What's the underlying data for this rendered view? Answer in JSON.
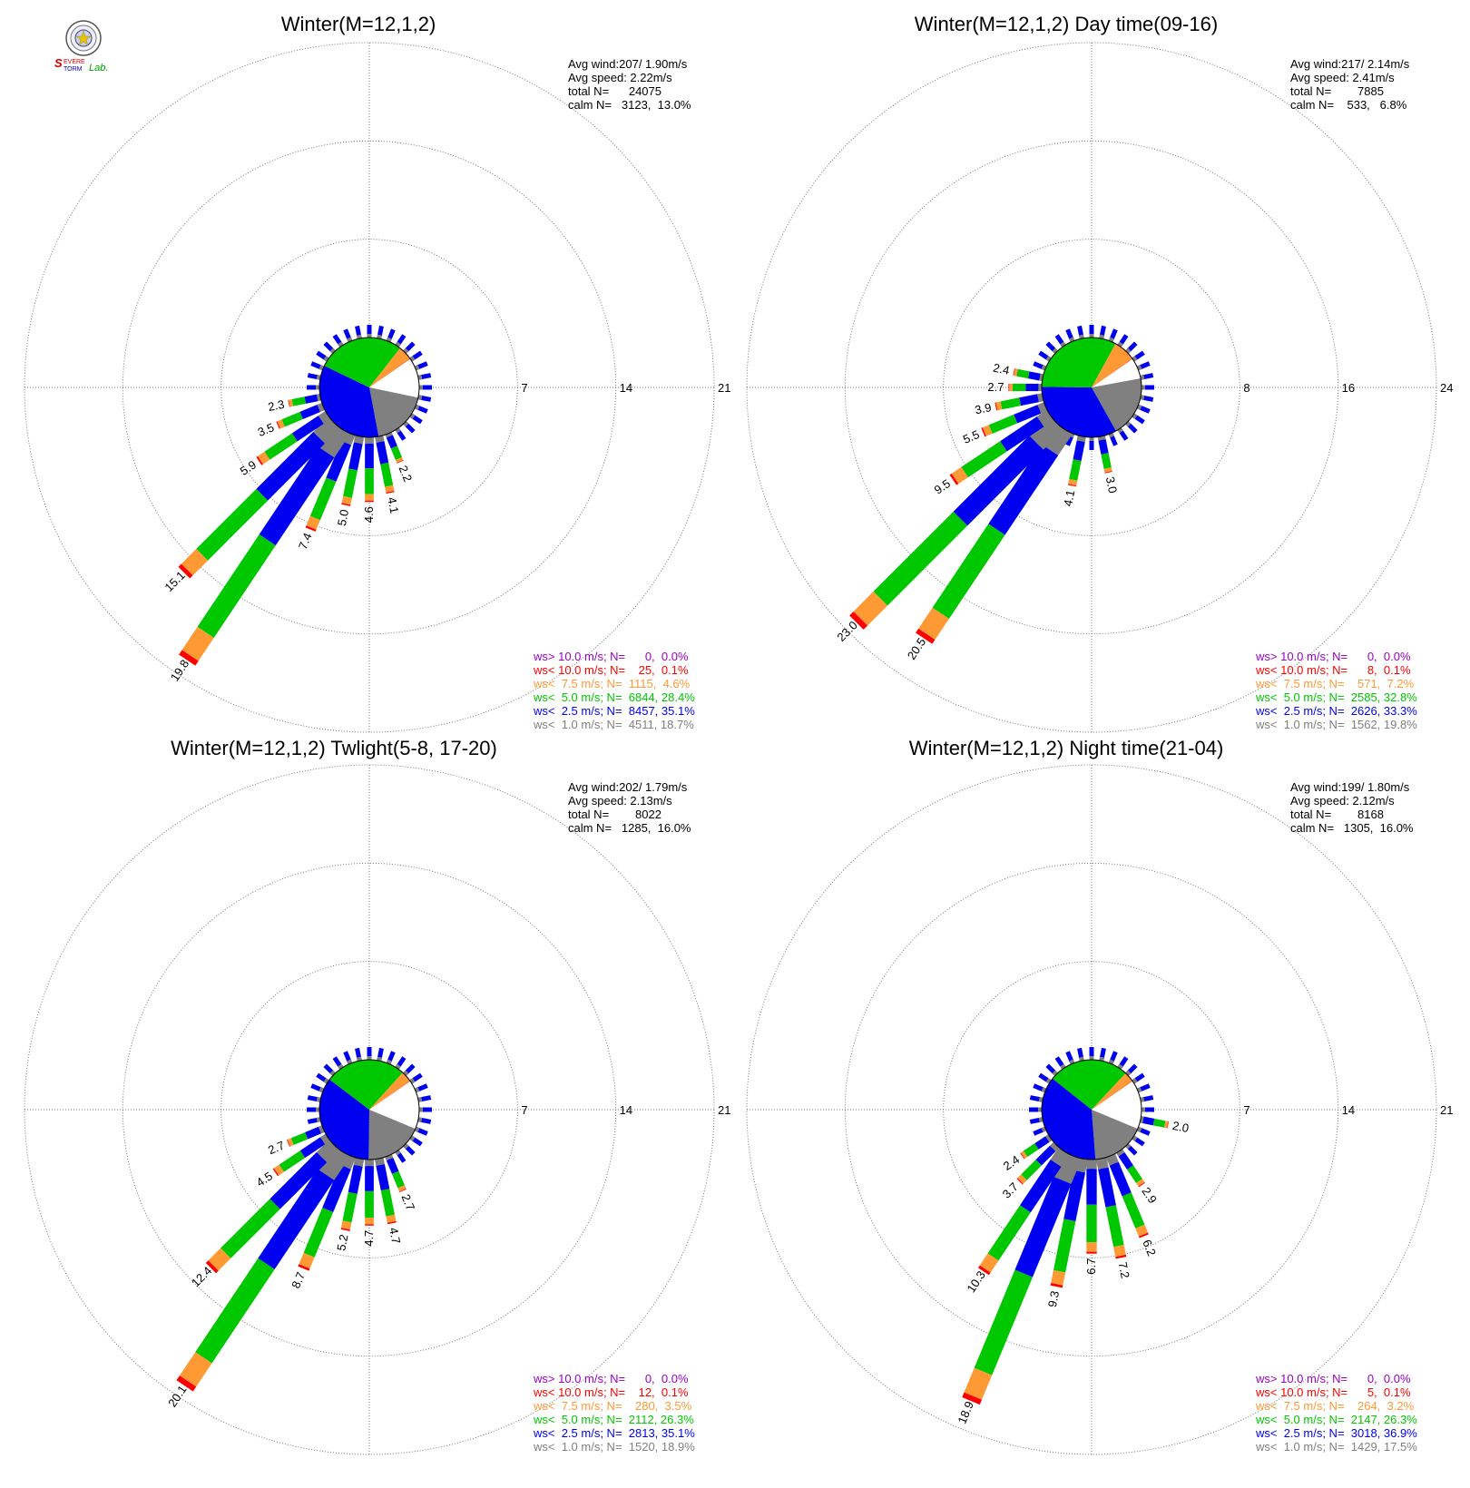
{
  "logo": {
    "text_line1": "SEVERE",
    "text_line2": "STORM",
    "text_lab": "Lab."
  },
  "colors": {
    "gt10": "#9b00c8",
    "lt10": "#ff0000",
    "lt75": "#ff9933",
    "lt50": "#00c800",
    "lt25": "#0000f0",
    "lt10calm": "#808080",
    "grid": "#777777"
  },
  "chart_data": [
    {
      "type": "windrose",
      "title": "Winter(M=12,1,2)",
      "stats": {
        "avg_wind": "Avg wind:207/ 1.90m/s",
        "avg_speed": "Avg speed: 2.22m/s",
        "total": "total N=      24075",
        "calm": "calm N=   3123,  13.0%"
      },
      "rings": [
        "7",
        "14",
        "21"
      ],
      "rmax": 21,
      "pie": [
        13.0,
        18.7,
        35.1,
        28.4,
        4.6,
        0.1
      ],
      "spokes": [
        {
          "dir": 157.5,
          "total": 2.2,
          "label": "2.2"
        },
        {
          "dir": 168.75,
          "total": 4.1,
          "label": "4.1"
        },
        {
          "dir": 180,
          "total": 4.6,
          "label": "4.6"
        },
        {
          "dir": 191.25,
          "total": 5.0,
          "label": "5.0"
        },
        {
          "dir": 202.5,
          "total": 7.4,
          "label": "7.4"
        },
        {
          "dir": 213.75,
          "total": 19.8,
          "label": "19.8"
        },
        {
          "dir": 225,
          "total": 15.1,
          "label": "15.1"
        },
        {
          "dir": 236.25,
          "total": 5.9,
          "label": "5.9"
        },
        {
          "dir": 247.5,
          "total": 3.5,
          "label": "3.5"
        },
        {
          "dir": 258.75,
          "total": 2.3,
          "label": "2.3"
        }
      ],
      "legend": [
        {
          "key": "gt10",
          "text": "ws> 10.0 m/s; N=      0,  0.0%"
        },
        {
          "key": "lt10",
          "text": "ws< 10.0 m/s; N=    25,  0.1%"
        },
        {
          "key": "lt75",
          "text": "ws<  7.5 m/s; N=  1115,  4.6%"
        },
        {
          "key": "lt50",
          "text": "ws<  5.0 m/s; N=  6844, 28.4%"
        },
        {
          "key": "lt25",
          "text": "ws<  2.5 m/s; N=  8457, 35.1%"
        },
        {
          "key": "lt10calm",
          "text": "ws<  1.0 m/s; N=  4511, 18.7%"
        }
      ]
    },
    {
      "type": "windrose",
      "title": "Winter(M=12,1,2) Day time(09-16)",
      "stats": {
        "avg_wind": "Avg wind:217/ 2.14m/s",
        "avg_speed": "Avg speed: 2.41m/s",
        "total": "total N=        7885",
        "calm": "calm N=    533,   6.8%"
      },
      "rings": [
        "8",
        "16",
        "24"
      ],
      "rmax": 24,
      "pie": [
        6.8,
        19.8,
        33.3,
        32.8,
        7.2,
        0.1
      ],
      "spokes": [
        {
          "dir": 168.75,
          "total": 3.0,
          "label": "3.0"
        },
        {
          "dir": 191.25,
          "total": 4.1,
          "label": "4.1"
        },
        {
          "dir": 213.75,
          "total": 20.5,
          "label": "20.5"
        },
        {
          "dir": 225,
          "total": 23.0,
          "label": "23.0"
        },
        {
          "dir": 236.25,
          "total": 9.5,
          "label": "9.5"
        },
        {
          "dir": 247.5,
          "total": 5.5,
          "label": "5.5"
        },
        {
          "dir": 258.75,
          "total": 3.9,
          "label": "3.9"
        },
        {
          "dir": 270,
          "total": 2.7,
          "label": "2.7"
        },
        {
          "dir": 281.25,
          "total": 2.4,
          "label": "2.4"
        }
      ],
      "legend": [
        {
          "key": "gt10",
          "text": "ws> 10.0 m/s; N=      0,  0.0%"
        },
        {
          "key": "lt10",
          "text": "ws< 10.0 m/s; N=      8,  0.1%"
        },
        {
          "key": "lt75",
          "text": "ws<  7.5 m/s; N=    571,  7.2%"
        },
        {
          "key": "lt50",
          "text": "ws<  5.0 m/s; N=  2585, 32.8%"
        },
        {
          "key": "lt25",
          "text": "ws<  2.5 m/s; N=  2626, 33.3%"
        },
        {
          "key": "lt10calm",
          "text": "ws<  1.0 m/s; N=  1562, 19.8%"
        }
      ]
    },
    {
      "type": "windrose",
      "title": "Winter(M=12,1,2) Twlight(5-8, 17-20)",
      "stats": {
        "avg_wind": "Avg wind:202/ 1.79m/s",
        "avg_speed": "Avg speed: 2.13m/s",
        "total": "total N=        8022",
        "calm": "calm N=   1285,  16.0%"
      },
      "rings": [
        "7",
        "14",
        "21"
      ],
      "rmax": 21,
      "pie": [
        16.0,
        18.9,
        35.1,
        26.3,
        3.5,
        0.1
      ],
      "spokes": [
        {
          "dir": 157.5,
          "total": 2.7,
          "label": "2.7"
        },
        {
          "dir": 168.75,
          "total": 4.7,
          "label": "4.7"
        },
        {
          "dir": 180,
          "total": 4.7,
          "label": "4.7"
        },
        {
          "dir": 191.25,
          "total": 5.2,
          "label": "5.2"
        },
        {
          "dir": 202.5,
          "total": 8.7,
          "label": "8.7"
        },
        {
          "dir": 213.75,
          "total": 20.1,
          "label": "20.1"
        },
        {
          "dir": 225,
          "total": 12.4,
          "label": "12.4"
        },
        {
          "dir": 236.25,
          "total": 4.5,
          "label": "4.5"
        },
        {
          "dir": 247.5,
          "total": 2.7,
          "label": "2.7"
        }
      ],
      "legend": [
        {
          "key": "gt10",
          "text": "ws> 10.0 m/s; N=      0,  0.0%"
        },
        {
          "key": "lt10",
          "text": "ws< 10.0 m/s; N=    12,  0.1%"
        },
        {
          "key": "lt75",
          "text": "ws<  7.5 m/s; N=    280,  3.5%"
        },
        {
          "key": "lt50",
          "text": "ws<  5.0 m/s; N=  2112, 26.3%"
        },
        {
          "key": "lt25",
          "text": "ws<  2.5 m/s; N=  2813, 35.1%"
        },
        {
          "key": "lt10calm",
          "text": "ws<  1.0 m/s; N=  1520, 18.9%"
        }
      ]
    },
    {
      "type": "windrose",
      "title": "Winter(M=12,1,2) Night time(21-04)",
      "stats": {
        "avg_wind": "Avg wind:199/ 1.80m/s",
        "avg_speed": "Avg speed: 2.12m/s",
        "total": "total N=        8168",
        "calm": "calm N=   1305,  16.0%"
      },
      "rings": [
        "7",
        "14",
        "21"
      ],
      "rmax": 21,
      "pie": [
        16.0,
        17.5,
        36.9,
        26.3,
        3.2,
        0.1
      ],
      "spokes": [
        {
          "dir": 101.25,
          "total": 2.0,
          "label": "2.0"
        },
        {
          "dir": 146.25,
          "total": 2.9,
          "label": "2.9"
        },
        {
          "dir": 157.5,
          "total": 6.2,
          "label": "6.2"
        },
        {
          "dir": 168.75,
          "total": 7.2,
          "label": "7.2"
        },
        {
          "dir": 180,
          "total": 6.7,
          "label": "6.7"
        },
        {
          "dir": 191.25,
          "total": 9.3,
          "label": "9.3"
        },
        {
          "dir": 202.5,
          "total": 18.9,
          "label": "18.9"
        },
        {
          "dir": 213.75,
          "total": 10.3,
          "label": "10.3"
        },
        {
          "dir": 225,
          "total": 3.7,
          "label": "3.7"
        },
        {
          "dir": 236.25,
          "total": 2.4,
          "label": "2.4"
        }
      ],
      "legend": [
        {
          "key": "gt10",
          "text": "ws> 10.0 m/s; N=      0,  0.0%"
        },
        {
          "key": "lt10",
          "text": "ws< 10.0 m/s; N=      5,  0.1%"
        },
        {
          "key": "lt75",
          "text": "ws<  7.5 m/s; N=    264,  3.2%"
        },
        {
          "key": "lt50",
          "text": "ws<  5.0 m/s; N=  2147, 26.3%"
        },
        {
          "key": "lt25",
          "text": "ws<  2.5 m/s; N=  3018, 36.9%"
        },
        {
          "key": "lt10calm",
          "text": "ws<  1.0 m/s; N=  1429, 17.5%"
        }
      ]
    }
  ]
}
